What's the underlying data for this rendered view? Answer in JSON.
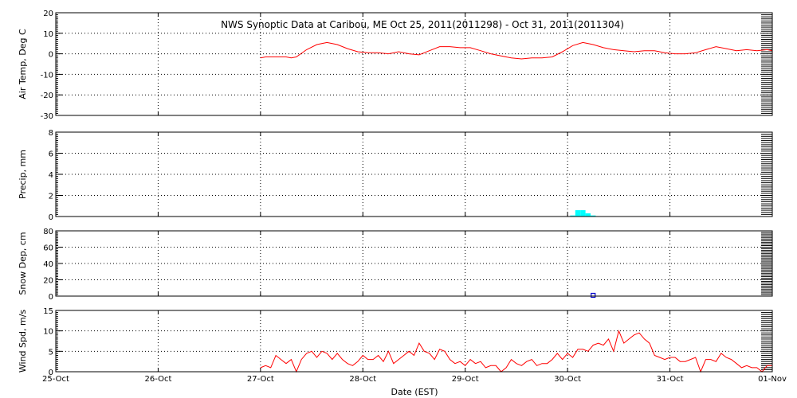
{
  "title": "NWS Synoptic Data at Caribou, ME   Oct 25, 2011(2011298) - Oct 31, 2011(2011304)",
  "xlabel": "Date (EST)",
  "x_ticks": [
    "25-Oct",
    "26-Oct",
    "27-Oct",
    "28-Oct",
    "29-Oct",
    "30-Oct",
    "31-Oct",
    "01-Nov"
  ],
  "colors": {
    "temp": "#ff0000",
    "precip": "#00ffff",
    "snow": "#0000cc",
    "wind": "#ff0000",
    "grid": "#000000"
  },
  "chart_data": [
    {
      "type": "line",
      "ylabel": "Air Temp, Deg C",
      "ylim": [
        -30,
        20
      ],
      "y_ticks": [
        20,
        10,
        0,
        -10,
        -20,
        -30
      ],
      "grid": true,
      "x_unit": "days since 25-Oct 00:00 EST",
      "series": [
        {
          "color": "#ff0000",
          "x": [
            2.0,
            2.05,
            2.15,
            2.25,
            2.3,
            2.35,
            2.45,
            2.55,
            2.65,
            2.75,
            2.85,
            2.95,
            3.05,
            3.15,
            3.25,
            3.35,
            3.45,
            3.55,
            3.65,
            3.75,
            3.85,
            3.95,
            4.05,
            4.15,
            4.25,
            4.35,
            4.45,
            4.55,
            4.65,
            4.75,
            4.85,
            4.95,
            5.05,
            5.15,
            5.25,
            5.35,
            5.45,
            5.55,
            5.65,
            5.75,
            5.85,
            5.95,
            6.05,
            6.15,
            6.25,
            6.35,
            6.45,
            6.55,
            6.65,
            6.75,
            6.85,
            6.95,
            7.0
          ],
          "y": [
            -2,
            -1.5,
            -1.5,
            -1.5,
            -2,
            -1.5,
            2,
            4.5,
            5.5,
            4.5,
            2.5,
            1,
            0.5,
            0.5,
            0,
            1,
            0,
            -0.5,
            1.5,
            3.5,
            3.5,
            3,
            3,
            1.5,
            0,
            -1,
            -2,
            -2.5,
            -2,
            -2,
            -1.5,
            1,
            4,
            5.5,
            4.5,
            3,
            2,
            1.5,
            1,
            1.5,
            1.5,
            0.5,
            0,
            0,
            0.5,
            2,
            3.5,
            2.5,
            1.5,
            2,
            1.5,
            2,
            1.5
          ]
        }
      ]
    },
    {
      "type": "bar",
      "ylabel": "Precip, mm",
      "ylim": [
        0,
        8
      ],
      "y_ticks": [
        8,
        6,
        4,
        2,
        0
      ],
      "grid": true,
      "x_unit": "days since 25-Oct 00:00 EST",
      "series": [
        {
          "color": "#00ffff",
          "x": [
            5.05,
            5.1,
            5.15,
            5.2,
            5.25
          ],
          "values": [
            0.1,
            0.6,
            0.6,
            0.3,
            0.1
          ]
        }
      ]
    },
    {
      "type": "scatter",
      "ylabel": "Snow Dep, cm",
      "ylim": [
        0,
        80
      ],
      "y_ticks": [
        80,
        60,
        40,
        20,
        0
      ],
      "grid": true,
      "x_unit": "days since 25-Oct 00:00 EST",
      "series": [
        {
          "color": "#0000cc",
          "x": [
            5.25
          ],
          "y": [
            0
          ]
        }
      ]
    },
    {
      "type": "line",
      "ylabel": "Wind Spd, m/s",
      "ylim": [
        0,
        15
      ],
      "y_ticks": [
        15,
        10,
        5,
        0
      ],
      "grid": true,
      "x_unit": "days since 25-Oct 00:00 EST",
      "series": [
        {
          "color": "#ff0000",
          "x": [
            2.0,
            2.05,
            2.1,
            2.15,
            2.2,
            2.25,
            2.3,
            2.35,
            2.4,
            2.45,
            2.5,
            2.55,
            2.6,
            2.65,
            2.7,
            2.75,
            2.8,
            2.85,
            2.9,
            2.95,
            3.0,
            3.05,
            3.1,
            3.15,
            3.2,
            3.25,
            3.3,
            3.35,
            3.4,
            3.45,
            3.5,
            3.55,
            3.6,
            3.65,
            3.7,
            3.75,
            3.8,
            3.85,
            3.9,
            3.95,
            4.0,
            4.05,
            4.1,
            4.15,
            4.2,
            4.25,
            4.3,
            4.35,
            4.4,
            4.45,
            4.5,
            4.55,
            4.6,
            4.65,
            4.7,
            4.75,
            4.8,
            4.85,
            4.9,
            4.95,
            5.0,
            5.05,
            5.1,
            5.15,
            5.2,
            5.25,
            5.3,
            5.35,
            5.4,
            5.45,
            5.5,
            5.55,
            5.6,
            5.65,
            5.7,
            5.75,
            5.8,
            5.85,
            5.9,
            5.95,
            6.0,
            6.05,
            6.1,
            6.15,
            6.2,
            6.25,
            6.3,
            6.35,
            6.4,
            6.45,
            6.5,
            6.55,
            6.6,
            6.65,
            6.7,
            6.75,
            6.8,
            6.85,
            6.9,
            6.95,
            7.0
          ],
          "y": [
            1,
            1.5,
            1,
            4,
            3,
            2,
            3,
            0,
            3,
            4.5,
            5,
            3.5,
            5,
            4.5,
            3,
            4.5,
            3,
            2,
            1.5,
            2.5,
            4,
            3,
            3,
            4,
            2.5,
            5,
            2,
            3,
            4,
            5,
            4,
            7,
            5,
            4.5,
            3,
            5.5,
            5,
            3,
            2,
            2.5,
            1.5,
            3,
            2,
            2.5,
            1,
            1.5,
            1.5,
            0,
            1,
            3,
            2,
            1.5,
            2.5,
            3,
            1.5,
            2,
            2,
            3,
            4.5,
            3,
            4.5,
            3.5,
            5.5,
            5.5,
            5,
            6.5,
            7,
            6.5,
            8,
            5,
            10,
            7,
            8,
            9,
            9.5,
            8,
            7,
            4,
            3.5,
            3,
            3.5,
            3.5,
            2.5,
            2.5,
            3,
            3.5,
            0,
            3,
            3,
            2.5,
            4.5,
            3.5,
            3,
            2,
            1,
            1.5,
            1,
            1,
            0,
            1.5,
            1.5
          ]
        }
      ]
    }
  ]
}
